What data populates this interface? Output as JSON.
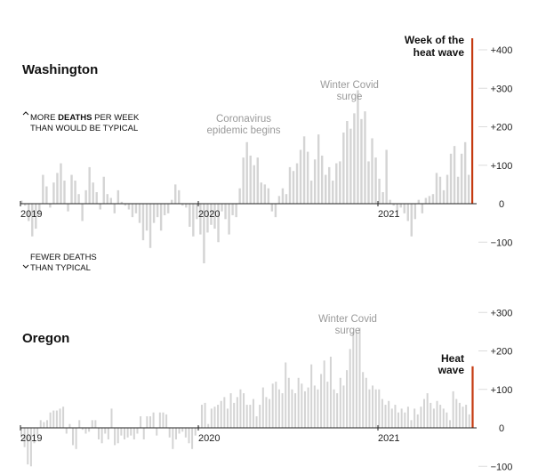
{
  "chart_data": [
    {
      "type": "bar",
      "title": "Washington",
      "series_unit": "excess deaths per week",
      "year_labels": [
        "2019",
        "2020",
        "2021"
      ],
      "y_ticks": [
        {
          "value": 400,
          "label": "+400"
        },
        {
          "value": 300,
          "label": "+300"
        },
        {
          "value": 200,
          "label": "+200"
        },
        {
          "value": 100,
          "label": "+100"
        },
        {
          "value": 0,
          "label": "0"
        },
        {
          "value": -100,
          "label": "−100"
        }
      ],
      "ylim": [
        -160,
        440
      ],
      "annotations": {
        "heat_wave": [
          "Week of the",
          "heat wave"
        ],
        "winter_surge": [
          "Winter Covid",
          "surge"
        ],
        "epidemic": [
          "Coronavirus",
          "epidemic begins"
        ],
        "more_deaths": {
          "before": "MORE ",
          "bold": "DEATHS",
          "after": " PER WEEK",
          "line2": "THAN WOULD BE TYPICAL"
        },
        "fewer_deaths": [
          "FEWER DEATHS",
          "THAN TYPICAL"
        ]
      },
      "values": [
        8,
        -5,
        -45,
        -85,
        -65,
        -25,
        75,
        45,
        -10,
        55,
        80,
        105,
        60,
        -20,
        75,
        60,
        25,
        -45,
        35,
        95,
        55,
        30,
        -15,
        70,
        25,
        15,
        -25,
        35,
        5,
        -5,
        -15,
        -35,
        -25,
        -50,
        -95,
        -70,
        -115,
        -50,
        -35,
        -70,
        -30,
        -25,
        10,
        50,
        35,
        -5,
        -10,
        -60,
        -85,
        -40,
        -80,
        -155,
        -75,
        -55,
        -65,
        -100,
        -20,
        -40,
        -80,
        -30,
        -35,
        40,
        120,
        160,
        125,
        100,
        120,
        55,
        50,
        40,
        -20,
        -35,
        20,
        40,
        25,
        95,
        85,
        105,
        140,
        175,
        135,
        60,
        115,
        180,
        125,
        75,
        95,
        60,
        105,
        110,
        185,
        215,
        195,
        235,
        295,
        220,
        240,
        110,
        170,
        120,
        65,
        30,
        140,
        10,
        -5,
        -20,
        -10,
        -25,
        -45,
        -85,
        -40,
        10,
        -25,
        15,
        20,
        25,
        80,
        70,
        35,
        75,
        130,
        150,
        70,
        130,
        160,
        75,
        430
      ]
    },
    {
      "type": "bar",
      "title": "Oregon",
      "series_unit": "excess deaths per week",
      "year_labels": [
        "2019",
        "2020",
        "2021"
      ],
      "y_ticks": [
        {
          "value": 300,
          "label": "+300"
        },
        {
          "value": 200,
          "label": "+200"
        },
        {
          "value": 100,
          "label": "+100"
        },
        {
          "value": 0,
          "label": "0"
        },
        {
          "value": -100,
          "label": "−100"
        }
      ],
      "ylim": [
        -100,
        300
      ],
      "annotations": {
        "heat_wave": [
          "Heat",
          "wave"
        ],
        "winter_surge": [
          "Winter Covid",
          "surge"
        ]
      },
      "values": [
        -25,
        -50,
        -95,
        -100,
        -40,
        -20,
        20,
        15,
        20,
        40,
        45,
        45,
        50,
        55,
        -15,
        10,
        -45,
        -55,
        20,
        -5,
        -15,
        -10,
        20,
        20,
        -30,
        -40,
        -15,
        -30,
        50,
        -45,
        -40,
        -20,
        -30,
        -25,
        -20,
        -30,
        -15,
        30,
        -30,
        30,
        30,
        40,
        -20,
        40,
        40,
        35,
        -25,
        -55,
        -30,
        -15,
        -10,
        -25,
        -40,
        -55,
        -20,
        5,
        60,
        65,
        10,
        50,
        55,
        60,
        70,
        80,
        50,
        90,
        65,
        80,
        100,
        90,
        60,
        60,
        75,
        30,
        60,
        105,
        80,
        75,
        115,
        120,
        100,
        90,
        170,
        130,
        100,
        90,
        130,
        115,
        95,
        105,
        165,
        110,
        100,
        140,
        175,
        120,
        185,
        100,
        90,
        130,
        110,
        150,
        205,
        250,
        250,
        260,
        145,
        130,
        100,
        110,
        100,
        100,
        75,
        60,
        70,
        50,
        60,
        40,
        50,
        40,
        55,
        20,
        50,
        35,
        55,
        75,
        90,
        65,
        50,
        70,
        60,
        50,
        40,
        20,
        95,
        75,
        65,
        55,
        60,
        35,
        160
      ]
    }
  ],
  "colors": {
    "bar": "#d4d4d4",
    "highlight": "#c53a10",
    "axis": "#222222",
    "grid": "#dcdcdc"
  }
}
